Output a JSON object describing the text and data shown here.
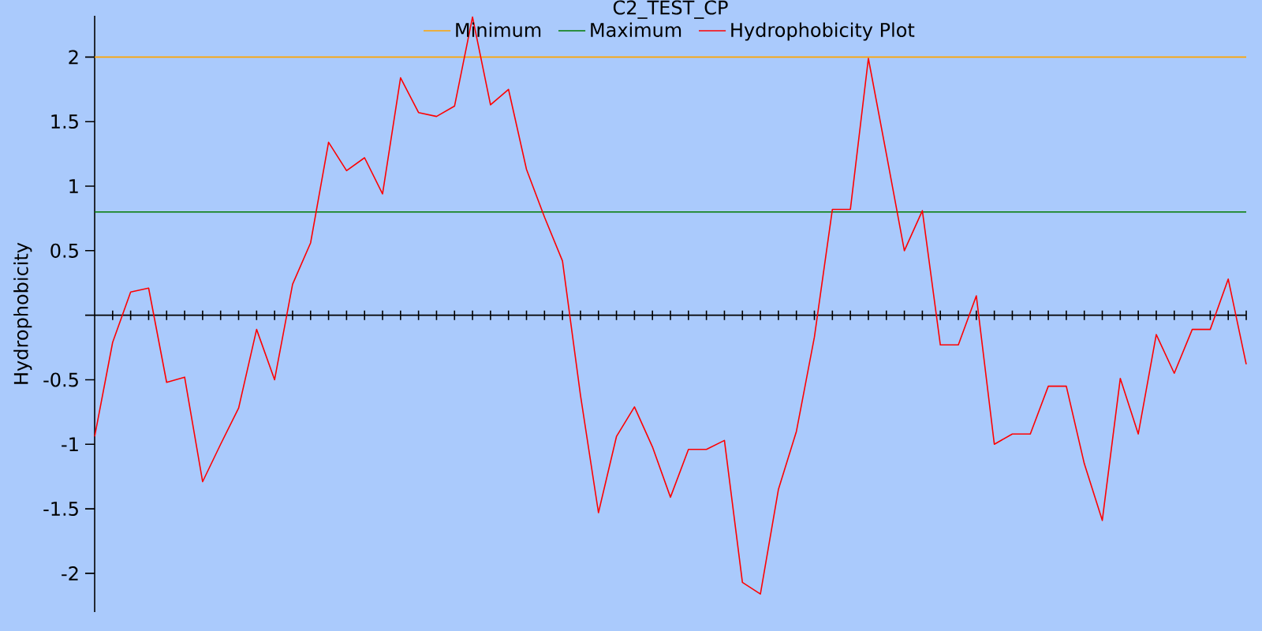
{
  "chart_data": {
    "type": "line",
    "title": "C2_TEST_CP",
    "ylabel": "Hydrophobicity",
    "categories": [
      null,
      null,
      null,
      null,
      null,
      null,
      null,
      null,
      null,
      null,
      null,
      null,
      null,
      null,
      null,
      null,
      null,
      null,
      null,
      null,
      null,
      null,
      null,
      null,
      null,
      null,
      null,
      null,
      null,
      null,
      null,
      null,
      null,
      null,
      null,
      null,
      null,
      null,
      null,
      null,
      null,
      null,
      null,
      null,
      null,
      null,
      null,
      null,
      null,
      null,
      null,
      null,
      null,
      null,
      null,
      null,
      null,
      null,
      null,
      null,
      null,
      null,
      null,
      null,
      null
    ],
    "series": [
      {
        "name": "Minimum",
        "color": "#ffa500",
        "values": [
          2,
          2,
          2,
          2,
          2,
          2,
          2,
          2,
          2,
          2,
          2,
          2,
          2,
          2,
          2,
          2,
          2,
          2,
          2,
          2,
          2,
          2,
          2,
          2,
          2,
          2,
          2,
          2,
          2,
          2,
          2,
          2,
          2,
          2,
          2,
          2,
          2,
          2,
          2,
          2,
          2,
          2,
          2,
          2,
          2,
          2,
          2,
          2,
          2,
          2,
          2,
          2,
          2,
          2,
          2,
          2,
          2,
          2,
          2,
          2,
          2,
          2,
          2,
          2,
          2
        ]
      },
      {
        "name": "Maximum",
        "color": "#007a00",
        "values": [
          0.8,
          0.8,
          0.8,
          0.8,
          0.8,
          0.8,
          0.8,
          0.8,
          0.8,
          0.8,
          0.8,
          0.8,
          0.8,
          0.8,
          0.8,
          0.8,
          0.8,
          0.8,
          0.8,
          0.8,
          0.8,
          0.8,
          0.8,
          0.8,
          0.8,
          0.8,
          0.8,
          0.8,
          0.8,
          0.8,
          0.8,
          0.8,
          0.8,
          0.8,
          0.8,
          0.8,
          0.8,
          0.8,
          0.8,
          0.8,
          0.8,
          0.8,
          0.8,
          0.8,
          0.8,
          0.8,
          0.8,
          0.8,
          0.8,
          0.8,
          0.8,
          0.8,
          0.8,
          0.8,
          0.8,
          0.8,
          0.8,
          0.8,
          0.8,
          0.8,
          0.8,
          0.8,
          0.8,
          0.8,
          0.8
        ]
      },
      {
        "name": "Hydrophobicity Plot",
        "color": "#ff0000",
        "values": [
          -0.94,
          -0.21,
          0.18,
          0.21,
          -0.52,
          -0.48,
          -1.29,
          -1.0,
          -0.72,
          -0.11,
          -0.5,
          0.24,
          0.56,
          1.34,
          1.12,
          1.22,
          0.94,
          1.84,
          1.57,
          1.54,
          1.62,
          2.31,
          1.63,
          1.75,
          1.13,
          0.76,
          0.42,
          -0.62,
          -1.53,
          -0.94,
          -0.71,
          -1.02,
          -1.41,
          -1.04,
          -1.04,
          -0.97,
          -2.07,
          -2.16,
          -1.35,
          -0.9,
          -0.17,
          0.82,
          0.82,
          1.99,
          1.25,
          0.5,
          0.81,
          -0.23,
          -0.23,
          0.15,
          -1.0,
          -0.92,
          -0.92,
          -0.55,
          -0.55,
          -1.15,
          -1.59,
          -0.49,
          -0.92,
          -0.15,
          -0.45,
          -0.11,
          -0.11,
          0.28,
          -0.38
        ]
      }
    ],
    "ylim": [
      -2.3,
      2.32
    ],
    "yticks": [
      -2,
      -1.5,
      -1,
      -0.5,
      {
        "value": 0,
        "label": null
      },
      0.5,
      1,
      1.5,
      2
    ],
    "legend": "top"
  }
}
